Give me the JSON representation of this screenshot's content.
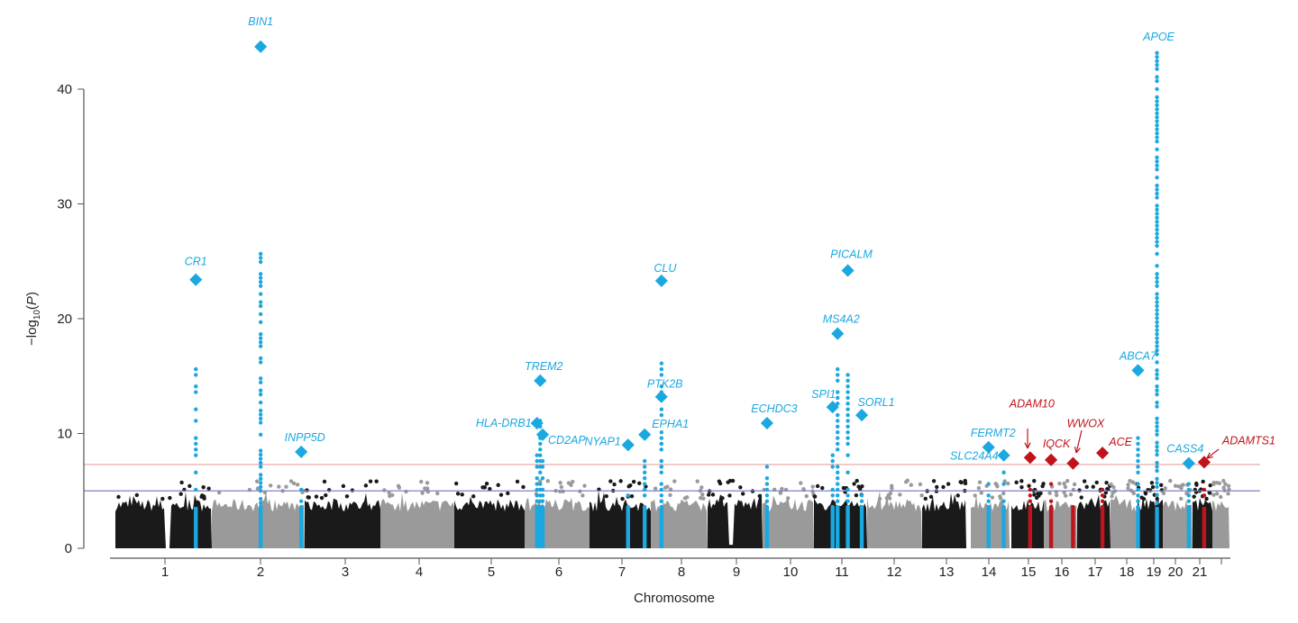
{
  "chart_data": {
    "type": "scatter",
    "subtype": "manhattan",
    "title": "",
    "xlabel": "Chromosome",
    "ylabel": "-log10(P)",
    "ylim": [
      0,
      45
    ],
    "yticks": [
      0,
      10,
      20,
      30,
      40
    ],
    "grid": false,
    "chromosomes": [
      "1",
      "2",
      "3",
      "4",
      "5",
      "6",
      "7",
      "8",
      "9",
      "10",
      "11",
      "12",
      "13",
      "14",
      "15",
      "16",
      "17",
      "18",
      "19",
      "20",
      "21",
      ""
    ],
    "thresholds": [
      {
        "value": 7.3,
        "color": "#e8a0a0"
      },
      {
        "value": 5.0,
        "color": "#8080c8"
      }
    ],
    "colors": {
      "odd": "#1a1a1a",
      "even": "#9a9a9a",
      "known": "#1ba8e0",
      "novel": "#c0141c"
    },
    "loci": [
      {
        "gene": "CR1",
        "chr": 1,
        "pos_mb": 207.7,
        "lead": 23.4,
        "column_max": 15.8,
        "status": "known"
      },
      {
        "gene": "BIN1",
        "chr": 2,
        "pos_mb": 127.8,
        "lead": 43.7,
        "column_max": 25.7,
        "status": "known"
      },
      {
        "gene": "INPP5D",
        "chr": 2,
        "pos_mb": 234.0,
        "lead": 8.4,
        "column_max": 5.4,
        "status": "known"
      },
      {
        "gene": "HLA-DRB1",
        "chr": 6,
        "pos_mb": 32.6,
        "lead": 10.9,
        "column_max": 8.5,
        "status": "known"
      },
      {
        "gene": "TREM2",
        "chr": 6,
        "pos_mb": 41.1,
        "lead": 14.6,
        "column_max": 11.3,
        "status": "known"
      },
      {
        "gene": "CD2AP",
        "chr": 6,
        "pos_mb": 47.5,
        "lead": 9.9,
        "column_max": 8.0,
        "status": "known"
      },
      {
        "gene": "NYAP1",
        "chr": 7,
        "pos_mb": 100.0,
        "lead": 9.0,
        "column_max": 5.0,
        "status": "known"
      },
      {
        "gene": "EPHA1",
        "chr": 7,
        "pos_mb": 143.1,
        "lead": 9.9,
        "column_max": 7.8,
        "status": "known"
      },
      {
        "gene": "PTK2B",
        "chr": 8,
        "pos_mb": 27.2,
        "lead": 13.2,
        "column_max": 9.3,
        "status": "known"
      },
      {
        "gene": "CLU",
        "chr": 8,
        "pos_mb": 27.5,
        "lead": 23.3,
        "column_max": 16.4,
        "status": "known"
      },
      {
        "gene": "ECHDC3",
        "chr": 10,
        "pos_mb": 11.7,
        "lead": 10.9,
        "column_max": 7.4,
        "status": "known"
      },
      {
        "gene": "SPI1",
        "chr": 11,
        "pos_mb": 47.4,
        "lead": 12.3,
        "column_max": 8.4,
        "status": "known"
      },
      {
        "gene": "MS4A2",
        "chr": 11,
        "pos_mb": 60.0,
        "lead": 18.7,
        "column_max": 15.9,
        "status": "known"
      },
      {
        "gene": "PICALM",
        "chr": 11,
        "pos_mb": 86.0,
        "lead": 24.2,
        "column_max": 15.1,
        "status": "known"
      },
      {
        "gene": "SORL1",
        "chr": 11,
        "pos_mb": 121.4,
        "lead": 11.6,
        "column_max": 5.0,
        "status": "known"
      },
      {
        "gene": "FERMT2",
        "chr": 14,
        "pos_mb": 49.0,
        "lead": 8.8,
        "column_max": 6.0,
        "status": "known"
      },
      {
        "gene": "SLC24A4",
        "chr": 14,
        "pos_mb": 91.0,
        "lead": 8.1,
        "column_max": 6.8,
        "status": "known"
      },
      {
        "gene": "ADAM10",
        "chr": 15,
        "pos_mb": 59.0,
        "lead": 7.9,
        "column_max": 5.5,
        "status": "novel"
      },
      {
        "gene": "IQCK",
        "chr": 16,
        "pos_mb": 19.7,
        "lead": 7.7,
        "column_max": 6.0,
        "status": "novel"
      },
      {
        "gene": "WWOX",
        "chr": 16,
        "pos_mb": 78.9,
        "lead": 7.4,
        "column_max": 4.0,
        "status": "novel"
      },
      {
        "gene": "ACE",
        "chr": 17,
        "pos_mb": 61.5,
        "lead": 8.3,
        "column_max": 5.2,
        "status": "novel"
      },
      {
        "gene": "ABCA7",
        "chr": 19,
        "pos_mb": 1.0,
        "lead": 15.5,
        "column_max": 9.7,
        "status": "known"
      },
      {
        "gene": "APOE",
        "chr": 19,
        "pos_mb": 45.4,
        "lead": null,
        "column_max": 43.5,
        "status": "known"
      },
      {
        "gene": "CASS4",
        "chr": 20,
        "pos_mb": 55.0,
        "lead": 7.4,
        "column_max": 6.0,
        "status": "known"
      },
      {
        "gene": "ADAMTS1",
        "chr": 21,
        "pos_mb": 28.2,
        "lead": 7.5,
        "column_max": 5.5,
        "status": "novel"
      }
    ]
  }
}
